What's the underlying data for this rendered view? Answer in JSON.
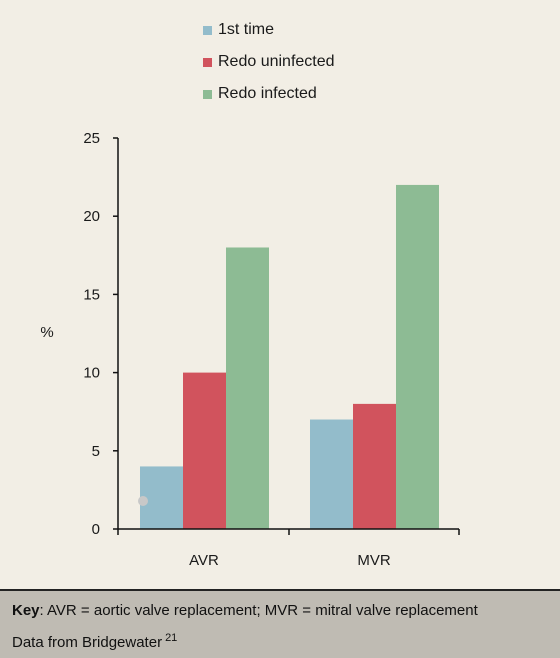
{
  "chart_data": {
    "type": "bar",
    "categories": [
      "AVR",
      "MVR"
    ],
    "series": [
      {
        "name": "1st time",
        "values": [
          4,
          7
        ],
        "color": "#93bccb"
      },
      {
        "name": "Redo uninfected",
        "values": [
          10,
          8
        ],
        "color": "#d1535d"
      },
      {
        "name": "Redo infected",
        "values": [
          18,
          22
        ],
        "color": "#8dbb94"
      }
    ],
    "ylabel": "%",
    "xlabel": "",
    "ylim": [
      0,
      25
    ],
    "yticks": [
      0,
      5,
      10,
      15,
      20,
      25
    ],
    "grid": false,
    "legend_position": "top"
  },
  "footer": {
    "key_label": "Key",
    "key_text": ": AVR = aortic valve replacement; MVR = mitral valve replacement",
    "source_text": "Data from Bridgewater",
    "source_ref": "21"
  }
}
